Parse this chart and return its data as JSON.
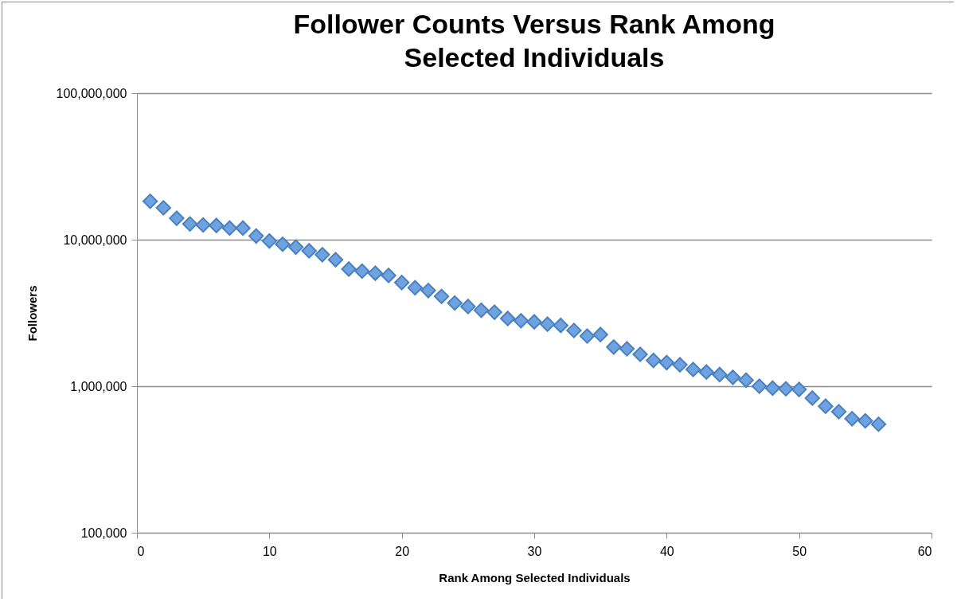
{
  "chart_data": {
    "type": "scatter",
    "title": "Follower Counts Versus Rank Among\nSelected Individuals",
    "xlabel": "Rank Among Selected Individuals",
    "ylabel": "Followers",
    "x": [
      1,
      2,
      3,
      4,
      5,
      6,
      7,
      8,
      9,
      10,
      11,
      12,
      13,
      14,
      15,
      16,
      17,
      18,
      19,
      20,
      21,
      22,
      23,
      24,
      25,
      26,
      27,
      28,
      29,
      30,
      31,
      32,
      33,
      34,
      35,
      36,
      37,
      38,
      39,
      40,
      41,
      42,
      43,
      44,
      45,
      46,
      47,
      48,
      49,
      50,
      51,
      52,
      53,
      54,
      55,
      56
    ],
    "values": [
      18300000,
      16500000,
      14000000,
      12800000,
      12600000,
      12500000,
      12000000,
      12000000,
      10600000,
      9800000,
      9300000,
      8900000,
      8400000,
      7900000,
      7300000,
      6300000,
      6100000,
      5900000,
      5700000,
      5100000,
      4700000,
      4500000,
      4100000,
      3700000,
      3500000,
      3300000,
      3200000,
      2900000,
      2800000,
      2750000,
      2650000,
      2600000,
      2400000,
      2200000,
      2250000,
      1850000,
      1800000,
      1650000,
      1500000,
      1450000,
      1400000,
      1300000,
      1250000,
      1200000,
      1150000,
      1100000,
      1000000,
      970000,
      960000,
      950000,
      830000,
      730000,
      670000,
      600000,
      580000,
      550000
    ],
    "color": "#6fa3e0",
    "marker": "diamond",
    "log": true,
    "grid": "y",
    "xlim": [
      0,
      60
    ],
    "xticks": [
      0,
      10,
      20,
      30,
      40,
      50,
      60
    ],
    "ylim": [
      100000,
      100000000
    ],
    "yticks": [
      {
        "value": 100000,
        "label": "100,000"
      },
      {
        "value": 1000000,
        "label": "1,000,000"
      },
      {
        "value": 10000000,
        "label": "10,000,000"
      },
      {
        "value": 100000000,
        "label": "100,000,000"
      }
    ]
  }
}
